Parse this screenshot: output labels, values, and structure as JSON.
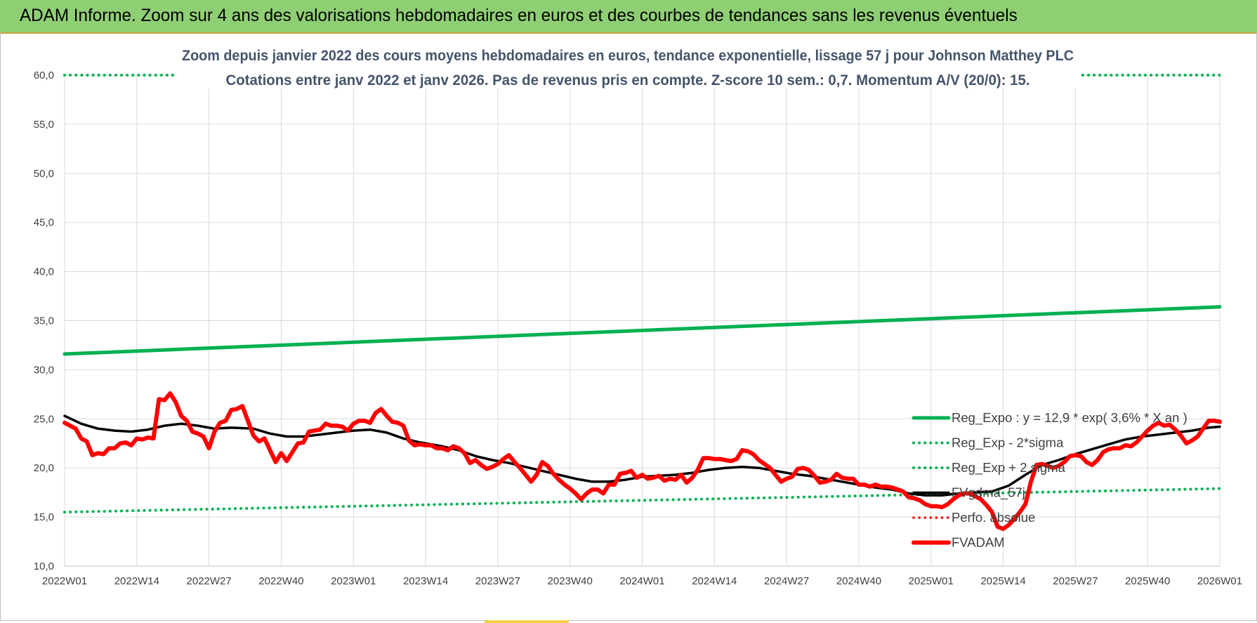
{
  "banner": {
    "title": "ADAM Informe. Zoom sur 4 ans des valorisations hebdomadaires en euros et des courbes de tendances sans les revenus éventuels"
  },
  "colors": {
    "banner_bg": "#8fcf74",
    "reg_expo": "#00b050",
    "fvadam": "#ff0000",
    "fvgdma": "#000000",
    "title_text": "#44546a",
    "gridline": "#d9d9d9"
  },
  "chart_data": {
    "type": "line",
    "title": "Zoom depuis janvier 2022 des cours moyens hebdomadaires en euros, tendance exponentielle, lissage 57 j pour Johnson Matthey PLC",
    "subtitle": "Cotations entre janv 2022 et janv 2026. Pas de revenus pris en compte. Z-score 10 sem.: 0,7. Momentum A/V (20/0): 15.",
    "xlabel": "",
    "ylabel": "",
    "ylim": [
      10,
      60
    ],
    "yticks": [
      "10,0",
      "15,0",
      "20,0",
      "25,0",
      "30,0",
      "35,0",
      "40,0",
      "45,0",
      "50,0",
      "55,0",
      "60,0"
    ],
    "x_tick_labels": [
      "2022W01",
      "2022W14",
      "2022W27",
      "2022W40",
      "2023W01",
      "2023W14",
      "2023W27",
      "2023W40",
      "2024W01",
      "2024W14",
      "2024W27",
      "2024W40",
      "2025W01",
      "2025W14",
      "2025W27",
      "2025W40",
      "2026W01"
    ],
    "weeks_between_labels": 13,
    "grid": true,
    "legend_position": "bottom-right",
    "series": [
      {
        "name": "Reg_Expo : y = 12,9 * exp( 3,6% *  X  an )",
        "style": "solid-green-thick",
        "points": [
          [
            0,
            31.6
          ],
          [
            208,
            36.4
          ]
        ]
      },
      {
        "name": "Reg_Exp - 2*sigma",
        "style": "dotted-green",
        "points": [
          [
            0,
            15.5
          ],
          [
            208,
            17.9
          ]
        ]
      },
      {
        "name": "Reg_Exp + 2 sigma",
        "style": "dotted-green",
        "points": [
          [
            0,
            60.0
          ],
          [
            208,
            60.0
          ]
        ]
      },
      {
        "name": "FVgdma_57j",
        "style": "solid-black",
        "points": [
          [
            0,
            25.3
          ],
          [
            3,
            24.5
          ],
          [
            6,
            24.0
          ],
          [
            9,
            23.8
          ],
          [
            12,
            23.7
          ],
          [
            15,
            23.9
          ],
          [
            18,
            24.3
          ],
          [
            21,
            24.5
          ],
          [
            24,
            24.3
          ],
          [
            27,
            24.0
          ],
          [
            30,
            24.1
          ],
          [
            34,
            24.0
          ],
          [
            37,
            23.5
          ],
          [
            40,
            23.2
          ],
          [
            43,
            23.2
          ],
          [
            46,
            23.4
          ],
          [
            49,
            23.6
          ],
          [
            52,
            23.8
          ],
          [
            55,
            23.9
          ],
          [
            58,
            23.6
          ],
          [
            61,
            23.0
          ],
          [
            64,
            22.6
          ],
          [
            68,
            22.2
          ],
          [
            71,
            21.8
          ],
          [
            74,
            21.2
          ],
          [
            77,
            20.8
          ],
          [
            80,
            20.5
          ],
          [
            83,
            20.1
          ],
          [
            86,
            19.7
          ],
          [
            89,
            19.3
          ],
          [
            92,
            18.9
          ],
          [
            95,
            18.6
          ],
          [
            98,
            18.6
          ],
          [
            101,
            18.8
          ],
          [
            104,
            19.1
          ],
          [
            107,
            19.2
          ],
          [
            110,
            19.3
          ],
          [
            113,
            19.5
          ],
          [
            116,
            19.8
          ],
          [
            119,
            20.0
          ],
          [
            122,
            20.1
          ],
          [
            125,
            20.0
          ],
          [
            128,
            19.7
          ],
          [
            131,
            19.4
          ],
          [
            134,
            19.2
          ],
          [
            137,
            18.9
          ],
          [
            140,
            18.6
          ],
          [
            143,
            18.3
          ],
          [
            146,
            18.0
          ],
          [
            149,
            17.8
          ],
          [
            152,
            17.4
          ],
          [
            155,
            17.2
          ],
          [
            158,
            17.2
          ],
          [
            161,
            17.4
          ],
          [
            164,
            17.5
          ],
          [
            167,
            17.6
          ],
          [
            170,
            18.2
          ],
          [
            173,
            19.3
          ],
          [
            176,
            20.3
          ],
          [
            179,
            20.8
          ],
          [
            182,
            21.4
          ],
          [
            185,
            21.9
          ],
          [
            188,
            22.4
          ],
          [
            191,
            22.9
          ],
          [
            194,
            23.2
          ],
          [
            197,
            23.4
          ],
          [
            200,
            23.6
          ],
          [
            203,
            23.8
          ],
          [
            206,
            24.1
          ],
          [
            208,
            24.2
          ]
        ]
      },
      {
        "name": "Perfo. absolue",
        "style": "dotted-red",
        "points": []
      },
      {
        "name": "FVADAM",
        "style": "solid-red-thick",
        "points": [
          [
            0,
            24.6
          ],
          [
            2,
            24.0
          ],
          [
            3,
            23.0
          ],
          [
            4,
            22.7
          ],
          [
            5,
            21.3
          ],
          [
            6,
            21.5
          ],
          [
            7,
            21.4
          ],
          [
            8,
            22.0
          ],
          [
            9,
            22.0
          ],
          [
            10,
            22.5
          ],
          [
            11,
            22.6
          ],
          [
            12,
            22.3
          ],
          [
            13,
            23.0
          ],
          [
            14,
            22.9
          ],
          [
            15,
            23.1
          ],
          [
            16,
            23.0
          ],
          [
            17,
            27.0
          ],
          [
            18,
            26.9
          ],
          [
            19,
            27.6
          ],
          [
            20,
            26.7
          ],
          [
            21,
            25.3
          ],
          [
            22,
            24.8
          ],
          [
            23,
            23.7
          ],
          [
            24,
            23.5
          ],
          [
            25,
            23.2
          ],
          [
            26,
            22.0
          ],
          [
            27,
            23.7
          ],
          [
            28,
            24.6
          ],
          [
            29,
            24.8
          ],
          [
            30,
            25.9
          ],
          [
            31,
            26.0
          ],
          [
            32,
            26.3
          ],
          [
            33,
            24.8
          ],
          [
            34,
            23.3
          ],
          [
            35,
            22.7
          ],
          [
            36,
            23.0
          ],
          [
            37,
            21.8
          ],
          [
            38,
            20.6
          ],
          [
            39,
            21.5
          ],
          [
            40,
            20.7
          ],
          [
            41,
            21.6
          ],
          [
            42,
            22.5
          ],
          [
            43,
            22.6
          ],
          [
            44,
            23.7
          ],
          [
            45,
            23.8
          ],
          [
            46,
            23.9
          ],
          [
            47,
            24.5
          ],
          [
            48,
            24.3
          ],
          [
            49,
            24.3
          ],
          [
            50,
            24.2
          ],
          [
            51,
            23.8
          ],
          [
            52,
            24.5
          ],
          [
            53,
            24.8
          ],
          [
            54,
            24.8
          ],
          [
            55,
            24.6
          ],
          [
            56,
            25.6
          ],
          [
            57,
            26.0
          ],
          [
            58,
            25.3
          ],
          [
            59,
            24.7
          ],
          [
            60,
            24.6
          ],
          [
            61,
            24.3
          ],
          [
            62,
            22.8
          ],
          [
            63,
            22.3
          ],
          [
            64,
            22.4
          ],
          [
            65,
            22.3
          ],
          [
            66,
            22.3
          ],
          [
            67,
            22.0
          ],
          [
            68,
            22.0
          ],
          [
            69,
            21.8
          ],
          [
            70,
            22.2
          ],
          [
            71,
            22.0
          ],
          [
            72,
            21.5
          ],
          [
            73,
            20.5
          ],
          [
            74,
            20.8
          ],
          [
            75,
            20.3
          ],
          [
            76,
            19.9
          ],
          [
            77,
            20.1
          ],
          [
            78,
            20.4
          ],
          [
            79,
            20.9
          ],
          [
            80,
            21.3
          ],
          [
            81,
            20.6
          ],
          [
            82,
            20.0
          ],
          [
            83,
            19.3
          ],
          [
            84,
            18.6
          ],
          [
            85,
            19.3
          ],
          [
            86,
            20.6
          ],
          [
            87,
            20.2
          ],
          [
            88,
            19.4
          ],
          [
            89,
            18.8
          ],
          [
            90,
            18.3
          ],
          [
            91,
            17.9
          ],
          [
            92,
            17.4
          ],
          [
            93,
            16.8
          ],
          [
            94,
            17.4
          ],
          [
            95,
            17.8
          ],
          [
            96,
            17.8
          ],
          [
            97,
            17.4
          ],
          [
            98,
            18.3
          ],
          [
            99,
            18.3
          ],
          [
            100,
            19.4
          ],
          [
            101,
            19.5
          ],
          [
            102,
            19.7
          ],
          [
            103,
            19.0
          ],
          [
            104,
            19.3
          ],
          [
            105,
            18.9
          ],
          [
            106,
            19.0
          ],
          [
            107,
            19.2
          ],
          [
            108,
            18.7
          ],
          [
            109,
            18.9
          ],
          [
            110,
            18.8
          ],
          [
            111,
            19.3
          ],
          [
            112,
            18.5
          ],
          [
            113,
            19.0
          ],
          [
            114,
            19.8
          ],
          [
            115,
            21.0
          ],
          [
            116,
            21.0
          ],
          [
            117,
            20.9
          ],
          [
            118,
            20.9
          ],
          [
            119,
            20.8
          ],
          [
            120,
            20.7
          ],
          [
            121,
            20.9
          ],
          [
            122,
            21.8
          ],
          [
            123,
            21.7
          ],
          [
            124,
            21.4
          ],
          [
            125,
            20.8
          ],
          [
            126,
            20.4
          ],
          [
            127,
            20.0
          ],
          [
            128,
            19.3
          ],
          [
            129,
            18.6
          ],
          [
            130,
            18.9
          ],
          [
            131,
            19.1
          ],
          [
            132,
            19.9
          ],
          [
            133,
            20.0
          ],
          [
            134,
            19.8
          ],
          [
            135,
            19.2
          ],
          [
            136,
            18.5
          ],
          [
            137,
            18.6
          ],
          [
            138,
            18.8
          ],
          [
            139,
            19.4
          ],
          [
            140,
            19.0
          ],
          [
            141,
            18.9
          ],
          [
            142,
            18.9
          ],
          [
            143,
            18.3
          ],
          [
            144,
            18.3
          ],
          [
            145,
            18.1
          ],
          [
            146,
            18.3
          ],
          [
            147,
            18.1
          ],
          [
            148,
            18.1
          ],
          [
            149,
            18.0
          ],
          [
            150,
            17.8
          ],
          [
            151,
            17.6
          ],
          [
            152,
            17.0
          ],
          [
            153,
            16.9
          ],
          [
            154,
            16.7
          ],
          [
            155,
            16.3
          ],
          [
            156,
            16.1
          ],
          [
            157,
            16.1
          ],
          [
            158,
            16.0
          ],
          [
            159,
            16.3
          ],
          [
            160,
            16.8
          ],
          [
            161,
            17.2
          ],
          [
            162,
            17.4
          ],
          [
            163,
            17.4
          ],
          [
            164,
            17.1
          ],
          [
            165,
            16.8
          ],
          [
            166,
            16.2
          ],
          [
            167,
            15.5
          ],
          [
            168,
            14.0
          ],
          [
            169,
            13.8
          ],
          [
            170,
            14.2
          ],
          [
            171,
            14.8
          ],
          [
            172,
            15.5
          ],
          [
            173,
            16.3
          ],
          [
            174,
            18.6
          ],
          [
            175,
            20.3
          ],
          [
            176,
            20.4
          ],
          [
            177,
            20.2
          ],
          [
            178,
            20.0
          ],
          [
            179,
            20.2
          ],
          [
            180,
            20.6
          ],
          [
            181,
            21.2
          ],
          [
            182,
            21.3
          ],
          [
            183,
            21.2
          ],
          [
            184,
            20.6
          ],
          [
            185,
            20.3
          ],
          [
            186,
            20.8
          ],
          [
            187,
            21.6
          ],
          [
            188,
            21.9
          ],
          [
            189,
            22.0
          ],
          [
            190,
            22.0
          ],
          [
            191,
            22.3
          ],
          [
            192,
            22.2
          ],
          [
            193,
            22.6
          ],
          [
            194,
            23.2
          ],
          [
            195,
            23.8
          ],
          [
            196,
            24.3
          ],
          [
            197,
            24.6
          ],
          [
            198,
            24.3
          ],
          [
            199,
            24.4
          ],
          [
            200,
            23.9
          ],
          [
            201,
            23.3
          ],
          [
            202,
            22.5
          ],
          [
            203,
            22.8
          ],
          [
            204,
            23.2
          ],
          [
            205,
            24.0
          ],
          [
            206,
            24.8
          ],
          [
            207,
            24.8
          ],
          [
            208,
            24.7
          ]
        ]
      }
    ]
  }
}
